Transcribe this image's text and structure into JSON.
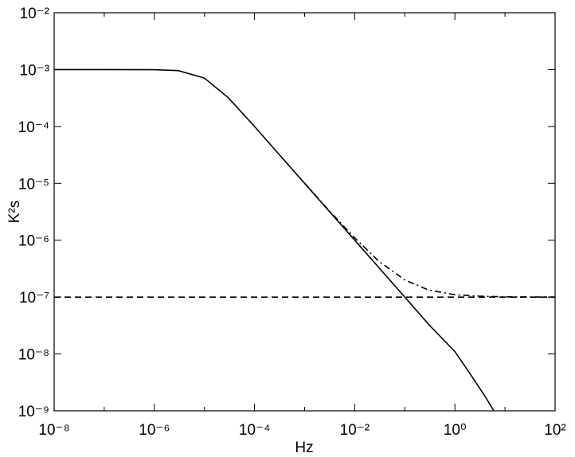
{
  "chart_data": {
    "type": "line",
    "xlabel": "Hz",
    "ylabel": "K²s",
    "xscale": "log",
    "yscale": "log",
    "xlim": [
      1e-08,
      100
    ],
    "ylim": [
      1e-09,
      0.01
    ],
    "xticks": [
      {
        "value": 1e-08,
        "label": "10⁻⁸"
      },
      {
        "value": 1e-06,
        "label": "10⁻⁶"
      },
      {
        "value": 0.0001,
        "label": "10⁻⁴"
      },
      {
        "value": 0.01,
        "label": "10⁻²"
      },
      {
        "value": 1,
        "label": "10⁰"
      },
      {
        "value": 100,
        "label": "10²"
      }
    ],
    "xminorticks": [
      1e-07,
      1e-05,
      0.001,
      0.1,
      10
    ],
    "yticks": [
      {
        "value": 1e-09,
        "label": "10⁻⁹"
      },
      {
        "value": 1e-08,
        "label": "10⁻⁸"
      },
      {
        "value": 1e-07,
        "label": "10⁻⁷"
      },
      {
        "value": 1e-06,
        "label": "10⁻⁶"
      },
      {
        "value": 1e-05,
        "label": "10⁻⁵"
      },
      {
        "value": 0.0001,
        "label": "10⁻⁴"
      },
      {
        "value": 0.001,
        "label": "10⁻³"
      },
      {
        "value": 0.01,
        "label": "10⁻²"
      }
    ],
    "grid": false,
    "series": [
      {
        "color": "#000000",
        "style": "solid",
        "x": [
          1e-08,
          1e-07,
          1e-06,
          3e-06,
          1e-05,
          3e-05,
          0.0001,
          0.001,
          0.01,
          0.1,
          0.3,
          1,
          2,
          4,
          6
        ],
        "values": [
          0.001,
          0.001,
          0.000995,
          0.00096,
          0.00071,
          0.00032,
          0.0001,
          1e-05,
          1e-06,
          1e-07,
          3.3e-08,
          1.1e-08,
          4.5e-09,
          1.8e-09,
          1e-09
        ]
      },
      {
        "color": "#000000",
        "style": "dashdot",
        "x": [
          0.001,
          0.003,
          0.01,
          0.03,
          0.1,
          0.3,
          1,
          3,
          10,
          100
        ],
        "values": [
          1.01e-05,
          3.4e-06,
          1.1e-06,
          4.3e-07,
          2e-07,
          1.33e-07,
          1.1e-07,
          1.04e-07,
          1.01e-07,
          1e-07
        ]
      },
      {
        "color": "#000000",
        "style": "dashed",
        "x": [
          1e-08,
          100
        ],
        "values": [
          1e-07,
          1e-07
        ]
      }
    ]
  }
}
